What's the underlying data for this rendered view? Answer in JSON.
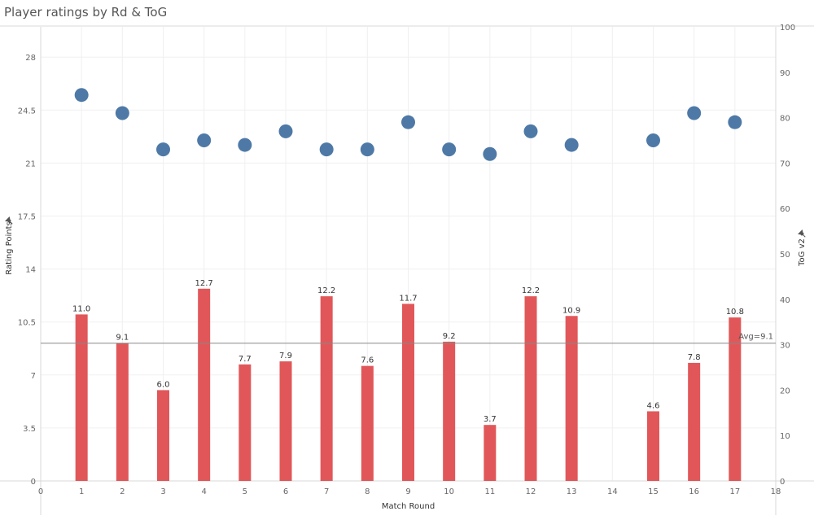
{
  "title": "Player ratings by Rd & ToG",
  "chart_data": {
    "type": "bar",
    "title": "Player ratings by Rd & ToG",
    "xlabel": "Match Round",
    "ylabel": "Rating Points",
    "y2label": "ToG v2",
    "xlim": [
      0,
      18
    ],
    "ylim": [
      0,
      30
    ],
    "y2lim": [
      0,
      100
    ],
    "x_ticks": [
      0,
      1,
      2,
      3,
      4,
      5,
      6,
      7,
      8,
      9,
      10,
      11,
      12,
      13,
      14,
      15,
      16,
      17,
      18
    ],
    "y_ticks": [
      0,
      3.5,
      7,
      10.5,
      14,
      17.5,
      21,
      24.5,
      28
    ],
    "y2_ticks": [
      0,
      10,
      20,
      30,
      40,
      50,
      60,
      70,
      80,
      90,
      100
    ],
    "grid": true,
    "series": [
      {
        "name": "Rating Points",
        "type": "bar",
        "axis": "left",
        "color": "#e15759",
        "x": [
          1,
          2,
          3,
          4,
          5,
          6,
          7,
          8,
          9,
          10,
          11,
          12,
          13,
          15,
          16,
          17
        ],
        "values": [
          11.0,
          9.1,
          6.0,
          12.7,
          7.7,
          7.9,
          12.2,
          7.6,
          11.7,
          9.2,
          3.7,
          12.2,
          10.9,
          4.6,
          7.8,
          10.8
        ],
        "labels": [
          "11.0",
          "9.1",
          "6.0",
          "12.7",
          "7.7",
          "7.9",
          "12.2",
          "7.6",
          "11.7",
          "9.2",
          "3.7",
          "12.2",
          "10.9",
          "4.6",
          "7.8",
          "10.8"
        ]
      },
      {
        "name": "ToG v2",
        "type": "scatter",
        "axis": "right",
        "color": "#4e79a7",
        "x": [
          1,
          2,
          3,
          4,
          5,
          6,
          7,
          8,
          9,
          10,
          11,
          12,
          13,
          15,
          16,
          17
        ],
        "values": [
          85,
          81,
          73,
          75,
          74,
          77,
          73,
          73,
          79,
          73,
          72,
          77,
          74,
          75,
          81,
          79
        ]
      }
    ],
    "reference_line": {
      "value": 9.1,
      "axis": "left",
      "label": "Avg=9.1",
      "color": "#888888"
    }
  }
}
